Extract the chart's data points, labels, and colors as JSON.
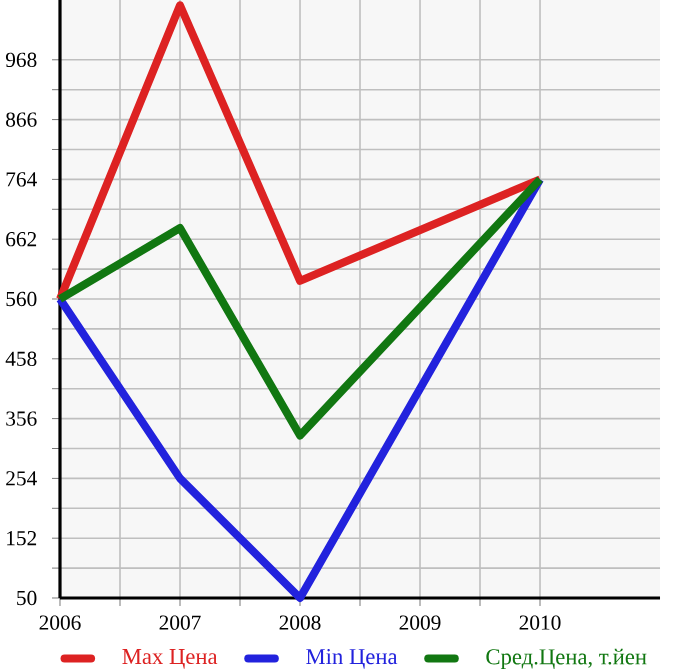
{
  "chart_data": {
    "type": "line",
    "x": [
      2006,
      2007,
      2008,
      2010
    ],
    "series": [
      {
        "name": "Max Цена",
        "color": "#dd2222",
        "values": [
          560,
          1061,
          591,
          764
        ]
      },
      {
        "name": "Min Цена",
        "color": "#2222dd",
        "values": [
          560,
          254,
          50,
          764
        ]
      },
      {
        "name": "Сред.Цена, т.йен",
        "color": "#117711",
        "values": [
          560,
          681,
          327,
          764
        ]
      }
    ],
    "xlim": [
      2006,
      2011
    ],
    "xticks": [
      2006,
      2007,
      2008,
      2009,
      2010
    ],
    "ylim": [
      50,
      1070
    ],
    "yticks": [
      50,
      152,
      254,
      356,
      458,
      560,
      662,
      764,
      866,
      968
    ],
    "grid": true,
    "legend": "bottom",
    "marker": "none",
    "line_style": "solid"
  }
}
